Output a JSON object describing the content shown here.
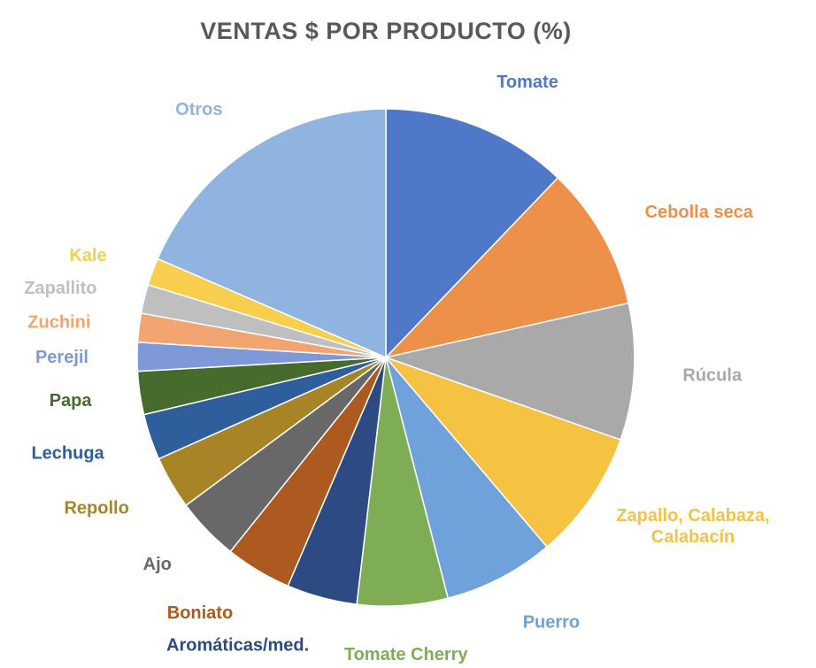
{
  "chart_data": {
    "type": "pie",
    "title": "VENTAS $ POR PRODUCTO (%)",
    "slices": [
      {
        "label": [
          "Tomate"
        ],
        "value": 13.0,
        "color": "#5078C8"
      },
      {
        "label": [
          "Cebolla seca"
        ],
        "value": 10.0,
        "color": "#ED914A"
      },
      {
        "label": [
          "Rúcula"
        ],
        "value": 9.5,
        "color": "#A9A9A9"
      },
      {
        "label": [
          "Zapallo, Calabaza,",
          "Calabacín"
        ],
        "value": 9.0,
        "color": "#F5C242"
      },
      {
        "label": [
          "Puerro"
        ],
        "value": 7.7,
        "color": "#6FA2DB"
      },
      {
        "label": [
          "Tomate Cherry"
        ],
        "value": 6.3,
        "color": "#7FAD55"
      },
      {
        "label": [
          "Aromáticas/med."
        ],
        "value": 4.9,
        "color": "#2E4A82"
      },
      {
        "label": [
          "Boniato"
        ],
        "value": 4.6,
        "color": "#AD5A20"
      },
      {
        "label": [
          "Ajo"
        ],
        "value": 4.4,
        "color": "#686868"
      },
      {
        "label": [
          "Repollo"
        ],
        "value": 3.7,
        "color": "#A78527"
      },
      {
        "label": [
          "Lechuga"
        ],
        "value": 3.2,
        "color": "#2E5E9C"
      },
      {
        "label": [
          "Papa"
        ],
        "value": 3.0,
        "color": "#466B2C"
      },
      {
        "label": [
          "Perejil"
        ],
        "value": 2.0,
        "color": "#7F98D8"
      },
      {
        "label": [
          "Zuchini"
        ],
        "value": 2.0,
        "color": "#F2A570"
      },
      {
        "label": [
          "Zapallito"
        ],
        "value": 2.0,
        "color": "#BFBFBF"
      },
      {
        "label": [
          "Kale"
        ],
        "value": 1.9,
        "color": "#F7CE4D"
      },
      {
        "label": [
          "Otros"
        ],
        "value": 19.8,
        "color": "#8FB4E0"
      }
    ]
  }
}
